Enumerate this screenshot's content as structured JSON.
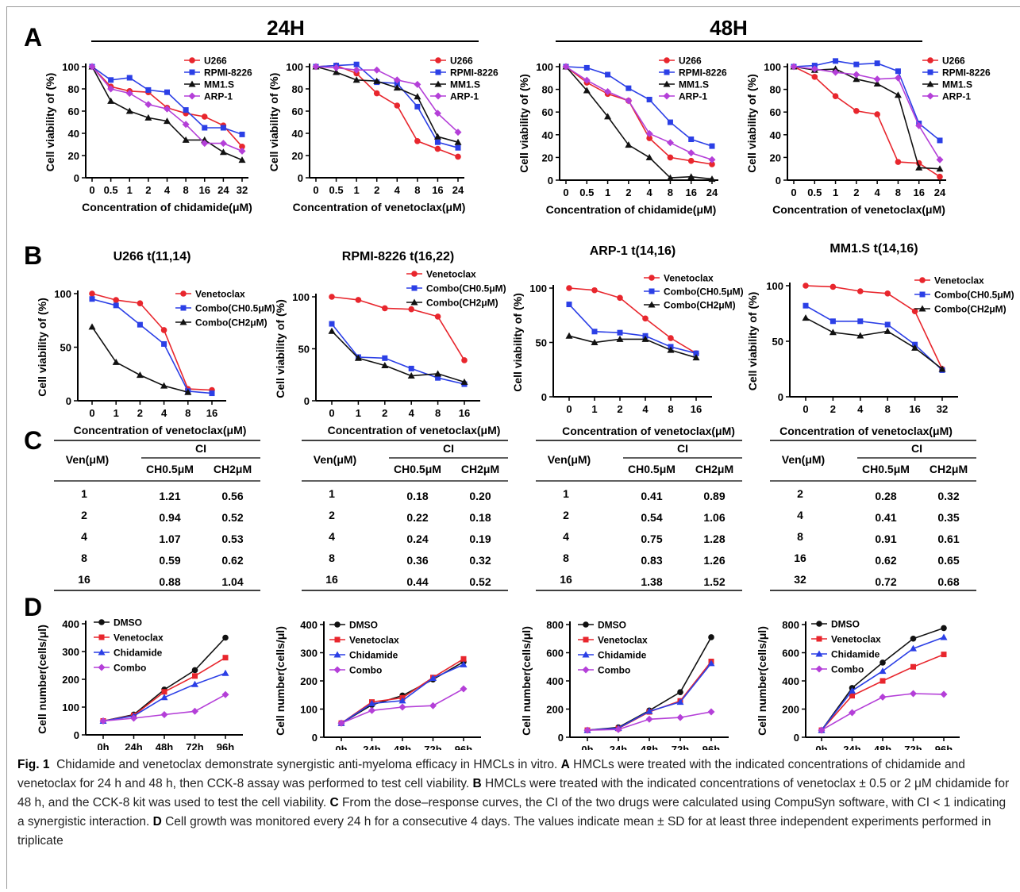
{
  "colors": {
    "red": "#e8262d",
    "blue": "#2b3fe6",
    "black": "#111111",
    "purple": "#b43fd8"
  },
  "panel_labels": {
    "A": "A",
    "B": "B",
    "C": "C",
    "D": "D"
  },
  "group_headers": {
    "h24": "24H",
    "h48": "48H"
  },
  "caption": {
    "fig_label": "Fig. 1",
    "intro": "Chidamide and venetoclax demonstrate synergistic anti-myeloma efficacy in HMCLs in vitro.",
    "A_label": "A",
    "A_text": "HMCLs were treated with the indicated concentrations of chidamide and venetoclax for 24 h and 48 h, then CCK-8 assay was performed to test cell viability.",
    "B_label": "B",
    "B_text": "HMCLs were treated with the indicated concentrations of venetoclax ± 0.5 or 2 μM chidamide for 48 h, and the CCK-8 kit was used to test the cell viability.",
    "C_label": "C",
    "C_text": "From the dose–response curves, the CI of the two drugs were calculated using CompuSyn software, with CI < 1 indicating a synergistic interaction.",
    "D_label": "D",
    "D_text": "Cell growth was monitored every 24 h for a consecutive 4 days. The values indicate mean ± SD for at least three independent experiments performed in triplicate"
  },
  "chart_data": [
    {
      "type": "line",
      "panel": "A",
      "title": "",
      "xlabel": "Concentration of chidamide(μM)",
      "ylabel": "Cell viability of (%)",
      "ylim": [
        0,
        100
      ],
      "yticks": [
        0,
        20,
        40,
        60,
        80,
        100
      ],
      "categories": [
        "0",
        "0.5",
        "1",
        "2",
        "4",
        "8",
        "16",
        "24",
        "32"
      ],
      "legend": "top-right",
      "series": [
        {
          "name": "U266",
          "color": "red",
          "values": [
            100,
            82,
            78,
            77,
            63,
            58,
            55,
            47,
            28
          ]
        },
        {
          "name": "RPMI-8226",
          "color": "blue",
          "values": [
            100,
            88,
            90,
            79,
            77,
            61,
            45,
            45,
            39
          ]
        },
        {
          "name": "MM1.S",
          "color": "black",
          "values": [
            100,
            69,
            60,
            54,
            51,
            34,
            34,
            23,
            16
          ]
        },
        {
          "name": "ARP-1",
          "color": "purple",
          "values": [
            100,
            80,
            76,
            66,
            62,
            48,
            31,
            31,
            24
          ]
        }
      ]
    },
    {
      "type": "line",
      "panel": "A",
      "title": "",
      "xlabel": "Concentration of venetoclax(μM)",
      "ylabel": "Cell viability of (%)",
      "ylim": [
        0,
        100
      ],
      "yticks": [
        0,
        20,
        40,
        60,
        80,
        100
      ],
      "categories": [
        "0",
        "0.5",
        "1",
        "2",
        "4",
        "8",
        "16",
        "24"
      ],
      "legend": "top-right",
      "series": [
        {
          "name": "U266",
          "color": "red",
          "values": [
            100,
            101,
            94,
            76,
            65,
            33,
            26,
            19
          ]
        },
        {
          "name": "RPMI-8226",
          "color": "blue",
          "values": [
            100,
            101,
            102,
            86,
            85,
            64,
            32,
            27
          ]
        },
        {
          "name": "MM1.S",
          "color": "black",
          "values": [
            100,
            95,
            88,
            87,
            81,
            73,
            37,
            32
          ]
        },
        {
          "name": "ARP-1",
          "color": "purple",
          "values": [
            100,
            99,
            97,
            97,
            88,
            84,
            58,
            41
          ]
        }
      ]
    },
    {
      "type": "line",
      "panel": "A",
      "title": "",
      "xlabel": "Concentration of chidamide(μM)",
      "ylabel": "Cell viability of (%)",
      "ylim": [
        0,
        100
      ],
      "yticks": [
        0,
        20,
        40,
        60,
        80,
        100
      ],
      "categories": [
        "0",
        "0.5",
        "1",
        "2",
        "4",
        "8",
        "16",
        "24"
      ],
      "legend": "top-right",
      "series": [
        {
          "name": "U266",
          "color": "red",
          "values": [
            100,
            86,
            76,
            70,
            37,
            20,
            17,
            14
          ]
        },
        {
          "name": "RPMI-8226",
          "color": "blue",
          "values": [
            100,
            99,
            93,
            81,
            71,
            51,
            36,
            30
          ]
        },
        {
          "name": "MM1.S",
          "color": "black",
          "values": [
            100,
            79,
            56,
            31,
            20,
            2,
            3,
            1
          ]
        },
        {
          "name": "ARP-1",
          "color": "purple",
          "values": [
            100,
            88,
            78,
            70,
            41,
            33,
            24,
            18
          ]
        }
      ]
    },
    {
      "type": "line",
      "panel": "A",
      "title": "",
      "xlabel": "Concentration of venetoclax(μM)",
      "ylabel": "Cell viability of (%)",
      "ylim": [
        0,
        100
      ],
      "yticks": [
        0,
        20,
        40,
        60,
        80,
        100
      ],
      "categories": [
        "0",
        "0.5",
        "1",
        "2",
        "4",
        "8",
        "16",
        "24"
      ],
      "legend": "top-right",
      "series": [
        {
          "name": "U266",
          "color": "red",
          "values": [
            100,
            91,
            74,
            61,
            58,
            16,
            15,
            3
          ]
        },
        {
          "name": "RPMI-8226",
          "color": "blue",
          "values": [
            100,
            101,
            105,
            102,
            103,
            96,
            50,
            35
          ]
        },
        {
          "name": "MM1.S",
          "color": "black",
          "values": [
            100,
            97,
            98,
            89,
            85,
            75,
            11,
            10
          ]
        },
        {
          "name": "ARP-1",
          "color": "purple",
          "values": [
            100,
            98,
            95,
            93,
            89,
            90,
            48,
            18
          ]
        }
      ]
    },
    {
      "type": "line",
      "panel": "B",
      "title": "U266 t(11,14)",
      "xlabel": "Concentration of venetoclax(μM)",
      "ylabel": "Cell viability of (%)",
      "ylim": [
        0,
        100
      ],
      "yticks": [
        0,
        50,
        100
      ],
      "categories": [
        "0",
        "1",
        "2",
        "4",
        "8",
        "16"
      ],
      "legend": "top-right",
      "series": [
        {
          "name": "Venetoclax",
          "color": "red",
          "values": [
            100,
            94,
            91,
            66,
            11,
            10
          ]
        },
        {
          "name": "Combo(CH0.5μM)",
          "color": "blue",
          "values": [
            95,
            89,
            71,
            53,
            9,
            7
          ]
        },
        {
          "name": "Combo(CH2μM)",
          "color": "black",
          "values": [
            69,
            36,
            24,
            14,
            8,
            null
          ]
        }
      ]
    },
    {
      "type": "line",
      "panel": "B",
      "title": "RPMI-8226 t(16,22)",
      "xlabel": "Concentration of venetoclax(μM)",
      "ylabel": "Cell viability of (%)",
      "ylim": [
        0,
        100
      ],
      "yticks": [
        0,
        50,
        100
      ],
      "categories": [
        "0",
        "1",
        "2",
        "4",
        "8",
        "16"
      ],
      "legend": "top-right",
      "series": [
        {
          "name": "Venetoclax",
          "color": "red",
          "values": [
            100,
            97,
            89,
            88,
            81,
            39
          ]
        },
        {
          "name": "Combo(CH0.5μM)",
          "color": "blue",
          "values": [
            74,
            42,
            41,
            31,
            22,
            16
          ]
        },
        {
          "name": "Combo(CH2μM)",
          "color": "black",
          "values": [
            67,
            41,
            34,
            24,
            26,
            18
          ]
        }
      ]
    },
    {
      "type": "line",
      "panel": "B",
      "title": "ARP-1 t(14,16)",
      "xlabel": "Concentration of venetoclax(μM)",
      "ylabel": "Cell viability of (%)",
      "ylim": [
        0,
        100
      ],
      "yticks": [
        0,
        50,
        100
      ],
      "categories": [
        "0",
        "1",
        "2",
        "4",
        "8",
        "16"
      ],
      "legend": "top-right",
      "series": [
        {
          "name": "Venetoclax",
          "color": "red",
          "values": [
            100,
            98,
            91,
            72,
            54,
            40
          ]
        },
        {
          "name": "Combo(CH0.5μM)",
          "color": "blue",
          "values": [
            85,
            60,
            59,
            56,
            46,
            40
          ]
        },
        {
          "name": "Combo(CH2μM)",
          "color": "black",
          "values": [
            56,
            50,
            53,
            53,
            43,
            36
          ]
        }
      ]
    },
    {
      "type": "line",
      "panel": "B",
      "title": "MM1.S t(14,16)",
      "xlabel": "Concentration of venetoclax(μM)",
      "ylabel": "Cell viability of (%)",
      "ylim": [
        0,
        100
      ],
      "yticks": [
        0,
        50,
        100
      ],
      "categories": [
        "0",
        "2",
        "4",
        "8",
        "16",
        "32"
      ],
      "legend": "top-right",
      "series": [
        {
          "name": "Venetoclax",
          "color": "red",
          "values": [
            100,
            99,
            95,
            93,
            77,
            25
          ]
        },
        {
          "name": "Combo(CH0.5μM)",
          "color": "blue",
          "values": [
            82,
            68,
            68,
            65,
            47,
            24
          ]
        },
        {
          "name": "Combo(CH2μM)",
          "color": "black",
          "values": [
            71,
            58,
            55,
            59,
            44,
            25
          ]
        }
      ]
    },
    {
      "type": "table",
      "panel": "C",
      "header_ven": "Ven(μM)",
      "header_ci": "CI",
      "subheaders": [
        "CH0.5μM",
        "CH2μM"
      ],
      "rows": [
        [
          "1",
          "1.21",
          "0.56"
        ],
        [
          "2",
          "0.94",
          "0.52"
        ],
        [
          "4",
          "1.07",
          "0.53"
        ],
        [
          "8",
          "0.59",
          "0.62"
        ],
        [
          "16",
          "0.88",
          "1.04"
        ]
      ]
    },
    {
      "type": "table",
      "panel": "C",
      "header_ven": "Ven(μM)",
      "header_ci": "CI",
      "subheaders": [
        "CH0.5μM",
        "CH2μM"
      ],
      "rows": [
        [
          "1",
          "0.18",
          "0.20"
        ],
        [
          "2",
          "0.22",
          "0.18"
        ],
        [
          "4",
          "0.24",
          "0.19"
        ],
        [
          "8",
          "0.36",
          "0.32"
        ],
        [
          "16",
          "0.44",
          "0.52"
        ]
      ]
    },
    {
      "type": "table",
      "panel": "C",
      "header_ven": "Ven(μM)",
      "header_ci": "CI",
      "subheaders": [
        "CH0.5μM",
        "CH2μM"
      ],
      "rows": [
        [
          "1",
          "0.41",
          "0.89"
        ],
        [
          "2",
          "0.54",
          "1.06"
        ],
        [
          "4",
          "0.75",
          "1.28"
        ],
        [
          "8",
          "0.83",
          "1.26"
        ],
        [
          "16",
          "1.38",
          "1.52"
        ]
      ]
    },
    {
      "type": "table",
      "panel": "C",
      "header_ven": "Ven(μM)",
      "header_ci": "CI",
      "subheaders": [
        "CH0.5μM",
        "CH2μM"
      ],
      "rows": [
        [
          "2",
          "0.28",
          "0.32"
        ],
        [
          "4",
          "0.41",
          "0.35"
        ],
        [
          "8",
          "0.91",
          "0.61"
        ],
        [
          "16",
          "0.62",
          "0.65"
        ],
        [
          "32",
          "0.72",
          "0.68"
        ]
      ]
    },
    {
      "type": "line",
      "panel": "D",
      "title": "",
      "xlabel": "",
      "ylabel": "Cell number(cells/μl)",
      "ylim": [
        0,
        400
      ],
      "yticks": [
        0,
        100,
        200,
        300,
        400
      ],
      "categories": [
        "0h",
        "24h",
        "48h",
        "72h",
        "96h"
      ],
      "legend": "top-left",
      "series": [
        {
          "name": "DMSO",
          "color": "black",
          "values": [
            50,
            73,
            163,
            233,
            350
          ]
        },
        {
          "name": "Venetoclax",
          "color": "red",
          "values": [
            50,
            70,
            155,
            212,
            278
          ]
        },
        {
          "name": "Chidamide",
          "color": "blue",
          "values": [
            50,
            68,
            135,
            182,
            222
          ]
        },
        {
          "name": "Combo",
          "color": "purple",
          "values": [
            50,
            60,
            73,
            85,
            145
          ]
        }
      ]
    },
    {
      "type": "line",
      "panel": "D",
      "title": "",
      "xlabel": "",
      "ylabel": "Cell number(cells/μl)",
      "ylim": [
        0,
        400
      ],
      "yticks": [
        0,
        100,
        200,
        300,
        400
      ],
      "categories": [
        "0h",
        "24h",
        "48h",
        "72h",
        "96h"
      ],
      "legend": "top-left",
      "series": [
        {
          "name": "DMSO",
          "color": "black",
          "values": [
            50,
            115,
            148,
            205,
            268
          ]
        },
        {
          "name": "Venetoclax",
          "color": "red",
          "values": [
            50,
            125,
            140,
            212,
            278
          ]
        },
        {
          "name": "Chidamide",
          "color": "blue",
          "values": [
            50,
            120,
            130,
            210,
            258
          ]
        },
        {
          "name": "Combo",
          "color": "purple",
          "values": [
            50,
            95,
            107,
            112,
            172
          ]
        }
      ]
    },
    {
      "type": "line",
      "panel": "D",
      "title": "",
      "xlabel": "",
      "ylabel": "Cell number(cells/μl)",
      "ylim": [
        0,
        800
      ],
      "yticks": [
        0,
        200,
        400,
        600,
        800
      ],
      "categories": [
        "0h",
        "24h",
        "48h",
        "72h",
        "96h"
      ],
      "legend": "top-left",
      "series": [
        {
          "name": "DMSO",
          "color": "black",
          "values": [
            50,
            70,
            190,
            320,
            710
          ]
        },
        {
          "name": "Venetoclax",
          "color": "red",
          "values": [
            50,
            62,
            180,
            258,
            538
          ]
        },
        {
          "name": "Chidamide",
          "color": "blue",
          "values": [
            50,
            65,
            185,
            250,
            525
          ]
        },
        {
          "name": "Combo",
          "color": "purple",
          "values": [
            50,
            55,
            128,
            140,
            180
          ]
        }
      ]
    },
    {
      "type": "line",
      "panel": "D",
      "title": "",
      "xlabel": "",
      "ylabel": "Cell number(cells/μl)",
      "ylim": [
        0,
        800
      ],
      "yticks": [
        0,
        200,
        400,
        600,
        800
      ],
      "categories": [
        "0h",
        "24h",
        "48h",
        "72h",
        "96h"
      ],
      "legend": "top-left",
      "series": [
        {
          "name": "DMSO",
          "color": "black",
          "values": [
            50,
            350,
            530,
            700,
            775
          ]
        },
        {
          "name": "Venetoclax",
          "color": "red",
          "values": [
            50,
            295,
            400,
            500,
            588
          ]
        },
        {
          "name": "Chidamide",
          "color": "blue",
          "values": [
            50,
            330,
            470,
            630,
            710
          ]
        },
        {
          "name": "Combo",
          "color": "purple",
          "values": [
            50,
            175,
            285,
            310,
            305
          ]
        }
      ]
    }
  ]
}
